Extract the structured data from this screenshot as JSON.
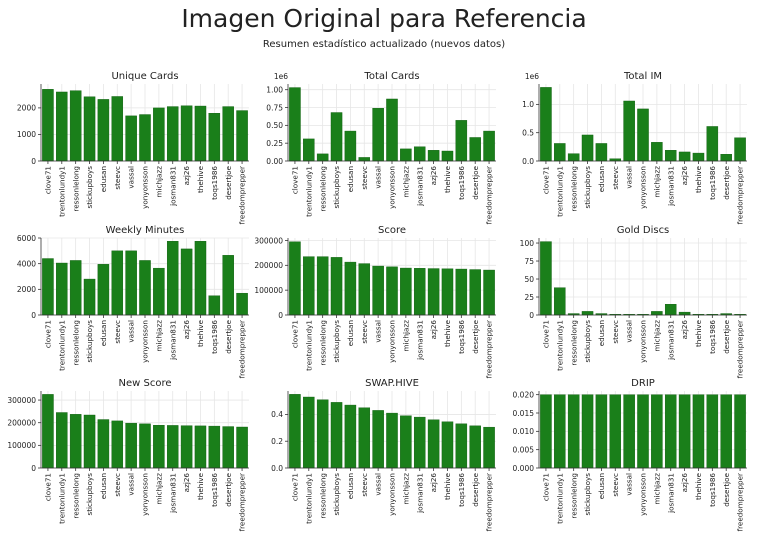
{
  "page": {
    "title": "Imagen Original para Referencia",
    "subtitle": "Resumen estadístico actualizado (nuevos datos)"
  },
  "colors": {
    "bar": "#1a7f1a",
    "bar_edge": "#0b5a0b",
    "grid": "#e6e6e6",
    "axis": "#333333"
  },
  "chart_data": [
    {
      "type": "bar",
      "title": "Unique Cards",
      "categories": [
        "clove71",
        "trentonlundy1",
        "ressonlelong",
        "stickupboys",
        "edusan",
        "steevc",
        "vassal",
        "yonyonsson",
        "michjazz",
        "josman831",
        "azj26",
        "thehive",
        "toqs1986",
        "desertjoe",
        "freedomprepper"
      ],
      "values": [
        2700,
        2600,
        2650,
        2420,
        2320,
        2430,
        1700,
        1750,
        2000,
        2050,
        2080,
        2070,
        1800,
        2050,
        1900
      ],
      "ylim": [
        0,
        2900
      ],
      "yticks": [
        0,
        1000,
        2000
      ],
      "ytick_labels": [
        "0",
        "1000",
        "2000"
      ],
      "offset_label": "",
      "grid": true
    },
    {
      "type": "bar",
      "title": "Total Cards",
      "categories": [
        "clove71",
        "trentonlundy1",
        "ressonlelong",
        "stickupboys",
        "edusan",
        "steevc",
        "vassal",
        "yonyonsson",
        "michjazz",
        "josman831",
        "azj26",
        "thehive",
        "toqs1986",
        "desertjoe",
        "freedomprepper"
      ],
      "values": [
        1030000,
        310000,
        100000,
        680000,
        420000,
        50000,
        740000,
        870000,
        170000,
        200000,
        150000,
        140000,
        570000,
        330000,
        420000
      ],
      "ylim": [
        0,
        1080000
      ],
      "yticks": [
        0,
        250000,
        500000,
        750000,
        1000000
      ],
      "ytick_labels": [
        "0.00",
        "0.25",
        "0.50",
        "0.75",
        "1.00"
      ],
      "offset_label": "1e6",
      "grid": true
    },
    {
      "type": "bar",
      "title": "Total IM",
      "categories": [
        "clove71",
        "trentonlundy1",
        "ressonlelong",
        "stickupboys",
        "edusan",
        "steevc",
        "vassal",
        "yonyonsson",
        "michjazz",
        "josman831",
        "azj26",
        "thehive",
        "toqs1986",
        "desertjoe",
        "freedomprepper"
      ],
      "values": [
        1300000,
        310000,
        130000,
        460000,
        310000,
        40000,
        1060000,
        920000,
        330000,
        190000,
        160000,
        140000,
        610000,
        120000,
        410000
      ],
      "ylim": [
        0,
        1360000
      ],
      "yticks": [
        0,
        500000,
        1000000
      ],
      "ytick_labels": [
        "0.0",
        "0.5",
        "1.0"
      ],
      "offset_label": "1e6",
      "grid": true
    },
    {
      "type": "bar",
      "title": "Weekly Minutes",
      "categories": [
        "clove71",
        "trentonlundy1",
        "ressonlelong",
        "stickupboys",
        "edusan",
        "steevc",
        "vassal",
        "yonyonsson",
        "michjazz",
        "josman831",
        "azj26",
        "thehive",
        "toqs1986",
        "desertjoe",
        "freedomprepper"
      ],
      "values": [
        4400,
        4050,
        4250,
        2800,
        3950,
        5000,
        5000,
        4250,
        3650,
        5750,
        5150,
        5750,
        1500,
        4650,
        1700
      ],
      "ylim": [
        0,
        6000
      ],
      "yticks": [
        0,
        2000,
        4000,
        6000
      ],
      "ytick_labels": [
        "0",
        "2000",
        "4000",
        "6000"
      ],
      "offset_label": "",
      "grid": true
    },
    {
      "type": "bar",
      "title": "Score",
      "categories": [
        "clove71",
        "trentonlundy1",
        "ressonlelong",
        "stickupboys",
        "edusan",
        "steevc",
        "vassal",
        "yonyonsson",
        "michjazz",
        "josman831",
        "azj26",
        "thehive",
        "toqs1986",
        "desertjoe",
        "freedomprepper"
      ],
      "values": [
        295000,
        235000,
        235000,
        232000,
        213000,
        207000,
        197000,
        194000,
        189000,
        188000,
        187000,
        186000,
        185000,
        183000,
        181000
      ],
      "ylim": [
        0,
        310000
      ],
      "yticks": [
        0,
        100000,
        200000,
        300000
      ],
      "ytick_labels": [
        "0",
        "100000",
        "200000",
        "300000"
      ],
      "offset_label": "",
      "grid": true
    },
    {
      "type": "bar",
      "title": "Gold Discs",
      "categories": [
        "clove71",
        "trentonlundy1",
        "ressonlelong",
        "stickupboys",
        "edusan",
        "steevc",
        "vassal",
        "yonyonsson",
        "michjazz",
        "josman831",
        "azj26",
        "thehive",
        "toqs1986",
        "desertjoe",
        "freedomprepper"
      ],
      "values": [
        102,
        38,
        2,
        5,
        2,
        1,
        1,
        1,
        5,
        15,
        4,
        1,
        1,
        2,
        1
      ],
      "ylim": [
        0,
        107
      ],
      "yticks": [
        0,
        25,
        50,
        75,
        100
      ],
      "ytick_labels": [
        "0",
        "25",
        "50",
        "75",
        "100"
      ],
      "offset_label": "",
      "grid": true
    },
    {
      "type": "bar",
      "title": "New Score",
      "categories": [
        "clove71",
        "trentonlundy1",
        "ressonlelong",
        "stickupboys",
        "edusan",
        "steevc",
        "vassal",
        "yonyonsson",
        "michjazz",
        "josman831",
        "azj26",
        "thehive",
        "toqs1986",
        "desertjoe",
        "freedomprepper"
      ],
      "values": [
        325000,
        245000,
        237000,
        234000,
        214000,
        208000,
        198000,
        195000,
        189000,
        188000,
        187000,
        186000,
        185000,
        183000,
        181000
      ],
      "ylim": [
        0,
        340000
      ],
      "yticks": [
        0,
        100000,
        200000,
        300000
      ],
      "ytick_labels": [
        "0",
        "100000",
        "200000",
        "300000"
      ],
      "offset_label": "",
      "grid": true
    },
    {
      "type": "bar",
      "title": "SWAP.HIVE",
      "categories": [
        "clove71",
        "trentonlundy1",
        "ressonlelong",
        "stickupboys",
        "edusan",
        "steevc",
        "vassal",
        "yonyonsson",
        "michjazz",
        "josman831",
        "azj26",
        "thehive",
        "toqs1986",
        "desertjoe",
        "freedomprepper"
      ],
      "values": [
        0.55,
        0.53,
        0.51,
        0.49,
        0.47,
        0.45,
        0.43,
        0.41,
        0.39,
        0.38,
        0.36,
        0.345,
        0.33,
        0.315,
        0.305
      ],
      "ylim": [
        0,
        0.575
      ],
      "yticks": [
        0,
        0.2,
        0.4
      ],
      "ytick_labels": [
        "0.0",
        "0.2",
        "0.4"
      ],
      "offset_label": "",
      "grid": true
    },
    {
      "type": "bar",
      "title": "DRIP",
      "categories": [
        "clove71",
        "trentonlundy1",
        "ressonlelong",
        "stickupboys",
        "edusan",
        "steevc",
        "vassal",
        "yonyonsson",
        "michjazz",
        "josman831",
        "azj26",
        "thehive",
        "toqs1986",
        "desertjoe",
        "freedomprepper"
      ],
      "values": [
        0.02,
        0.02,
        0.02,
        0.02,
        0.02,
        0.02,
        0.02,
        0.02,
        0.02,
        0.02,
        0.02,
        0.02,
        0.02,
        0.02,
        0.02
      ],
      "ylim": [
        0,
        0.021
      ],
      "yticks": [
        0,
        0.005,
        0.01,
        0.015,
        0.02
      ],
      "ytick_labels": [
        "0.000",
        "0.005",
        "0.010",
        "0.015",
        "0.020"
      ],
      "offset_label": "",
      "grid": true
    }
  ]
}
